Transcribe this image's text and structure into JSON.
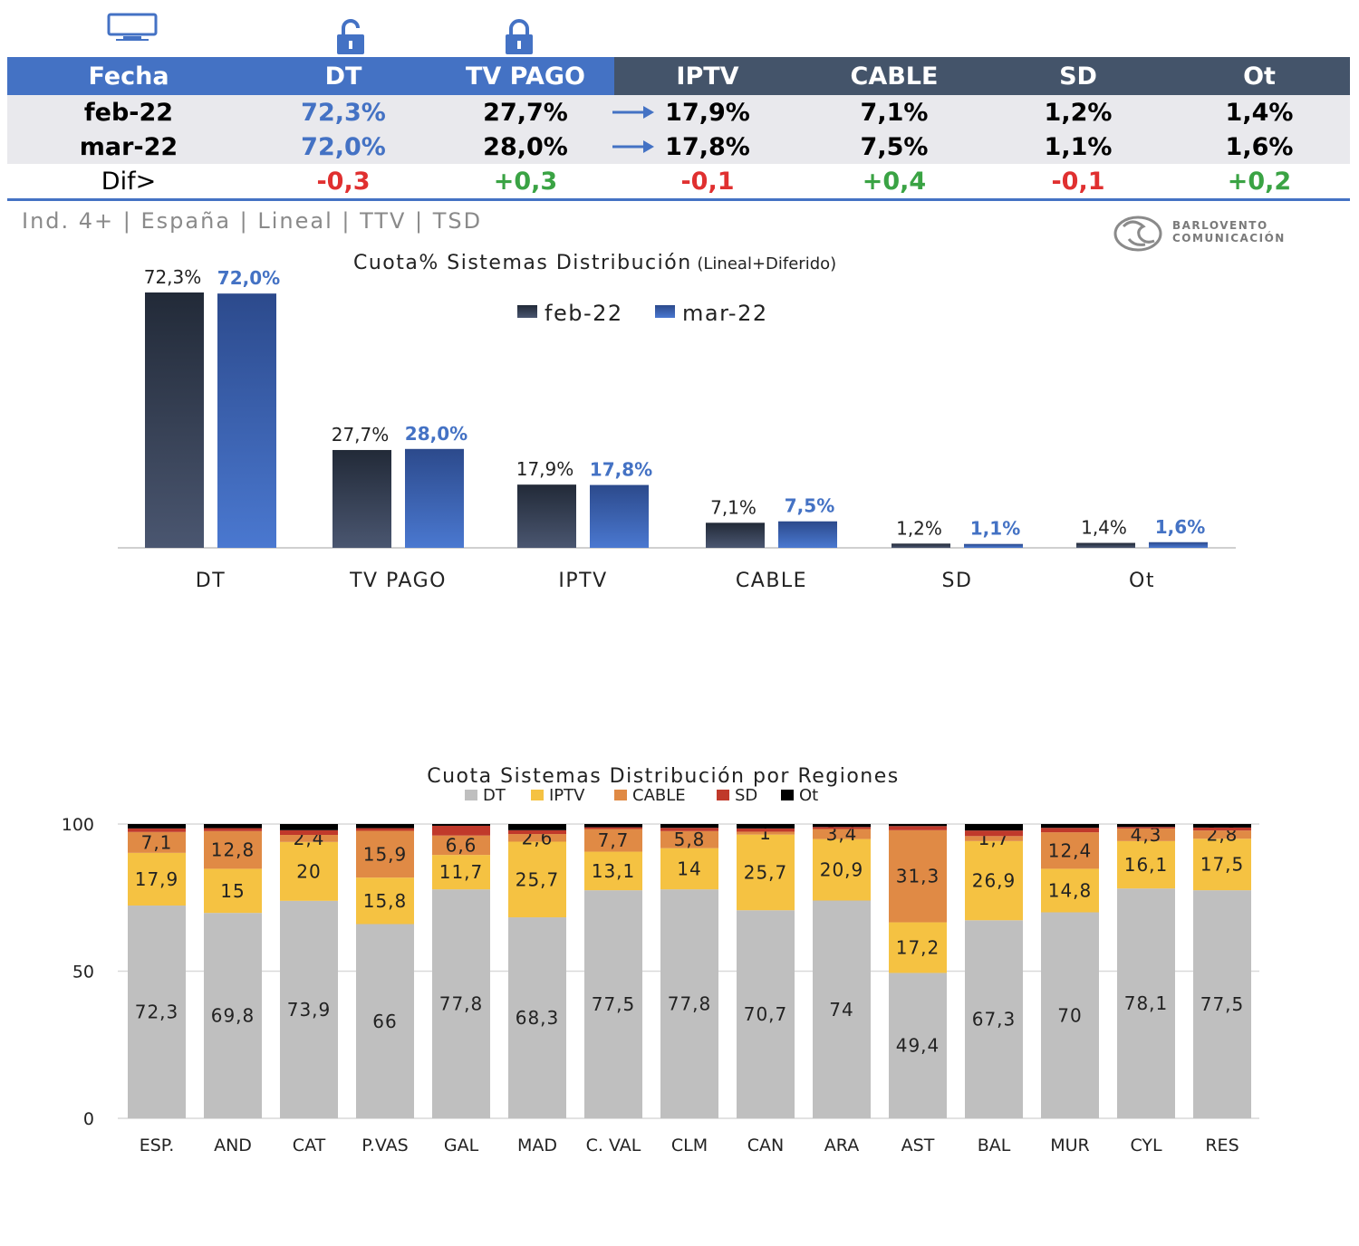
{
  "icons": [
    "tv-icon",
    "unlock-icon",
    "lock-icon"
  ],
  "table": {
    "headers": [
      "Fecha",
      "DT",
      "TV PAGO",
      "IPTV",
      "CABLE",
      "SD",
      "Ot"
    ],
    "rows": [
      {
        "fecha": "feb-22",
        "dt": "72,3%",
        "tvpago": "27,7%",
        "iptv": "17,9%",
        "cable": "7,1%",
        "sd": "1,2%",
        "ot": "1,4%"
      },
      {
        "fecha": "mar-22",
        "dt": "72,0%",
        "tvpago": "28,0%",
        "iptv": "17,8%",
        "cable": "7,5%",
        "sd": "1,1%",
        "ot": "1,6%"
      }
    ],
    "diff": {
      "label": "Dif>",
      "dt": "-0,3",
      "tvpago": "+0,3",
      "iptv": "-0,1",
      "cable": "+0,4",
      "sd": "-0,1",
      "ot": "+0,2"
    }
  },
  "subtitle": "Ind. 4+ | España | Lineal | TTV | TSD",
  "logo": {
    "line1": "BARLOVENTO",
    "line2": "COMUNICACIÓN"
  },
  "colors": {
    "header_blue": "#4472c4",
    "header_dark": "#44546a",
    "neg": "#e03030",
    "pos": "#3aa344",
    "feb": "#2f3a4f",
    "mar": "#3b62b8",
    "DT": "#bfbfbf",
    "IPTV": "#f5c242",
    "CABLE": "#e08a45",
    "SD": "#c0392b",
    "Ot": "#000000"
  },
  "chart_data": [
    {
      "type": "bar",
      "title": "Cuota% Sistemas Distribución",
      "title_note": "(Lineal+Diferido)",
      "categories": [
        "DT",
        "TV PAGO",
        "IPTV",
        "CABLE",
        "SD",
        "Ot"
      ],
      "series": [
        {
          "name": "feb-22",
          "values": [
            72.3,
            27.7,
            17.9,
            7.1,
            1.2,
            1.4
          ],
          "labels": [
            "72,3%",
            "27,7%",
            "17,9%",
            "7,1%",
            "1,2%",
            "1,4%"
          ]
        },
        {
          "name": "mar-22",
          "values": [
            72.0,
            28.0,
            17.8,
            7.5,
            1.1,
            1.6
          ],
          "labels": [
            "72,0%",
            "28,0%",
            "17,8%",
            "7,5%",
            "1,1%",
            "1,6%"
          ]
        }
      ],
      "legend": "top-center",
      "ylim": [
        0,
        72.3
      ]
    },
    {
      "type": "bar",
      "stacked": true,
      "title": "Cuota Sistemas Distribución por  Regiones",
      "categories": [
        "ESP.",
        "AND",
        "CAT",
        "P.VAS",
        "GAL",
        "MAD",
        "C. VAL",
        "CLM",
        "CAN",
        "ARA",
        "AST",
        "BAL",
        "MUR",
        "CYL",
        "RES"
      ],
      "series": [
        {
          "name": "DT",
          "values": [
            72.3,
            69.8,
            73.9,
            66,
            77.8,
            68.3,
            77.5,
            77.8,
            70.7,
            74,
            49.4,
            67.3,
            70,
            78.1,
            77.5
          ],
          "labels": [
            "72,3",
            "69,8",
            "73,9",
            "66",
            "77,8",
            "68,3",
            "77,5",
            "77,8",
            "70,7",
            "74",
            "49,4",
            "67,3",
            "70",
            "78,1",
            "77,5"
          ]
        },
        {
          "name": "IPTV",
          "values": [
            17.9,
            15,
            20,
            15.8,
            11.7,
            25.7,
            13.1,
            14,
            25.7,
            20.9,
            17.2,
            26.9,
            14.8,
            16.1,
            17.5
          ],
          "labels": [
            "17,9",
            "15",
            "20",
            "15,8",
            "11,7",
            "25,7",
            "13,1",
            "14",
            "25,7",
            "20,9",
            "17,2",
            "26,9",
            "14,8",
            "16,1",
            "17,5"
          ]
        },
        {
          "name": "CABLE",
          "values": [
            7.1,
            12.8,
            2.4,
            15.9,
            6.6,
            2.6,
            7.7,
            5.8,
            1,
            3.4,
            31.3,
            1.7,
            12.4,
            4.3,
            2.8
          ],
          "labels": [
            "7,1",
            "12,8",
            "2,4",
            "15,9",
            "6,6",
            "2,6",
            "7,7",
            "5,8",
            "1",
            "3,4",
            "31,3",
            "1,7",
            "12,4",
            "4,3",
            "2,8"
          ]
        },
        {
          "name": "SD",
          "values": [
            1.2,
            1.0,
            1.6,
            0.9,
            3.3,
            1.3,
            0.6,
            1.1,
            1.1,
            0.7,
            1.4,
            1.9,
            1.5,
            0.5,
            1.0
          ]
        },
        {
          "name": "Ot",
          "values": [
            1.5,
            1.4,
            2.1,
            1.4,
            0.6,
            2.1,
            1.1,
            1.3,
            1.5,
            1.0,
            0.7,
            2.2,
            1.3,
            1.0,
            1.2
          ]
        }
      ],
      "yticks": [
        0,
        50,
        100
      ],
      "ylim": [
        0,
        100
      ],
      "legend": "top-center",
      "grid": false
    }
  ]
}
